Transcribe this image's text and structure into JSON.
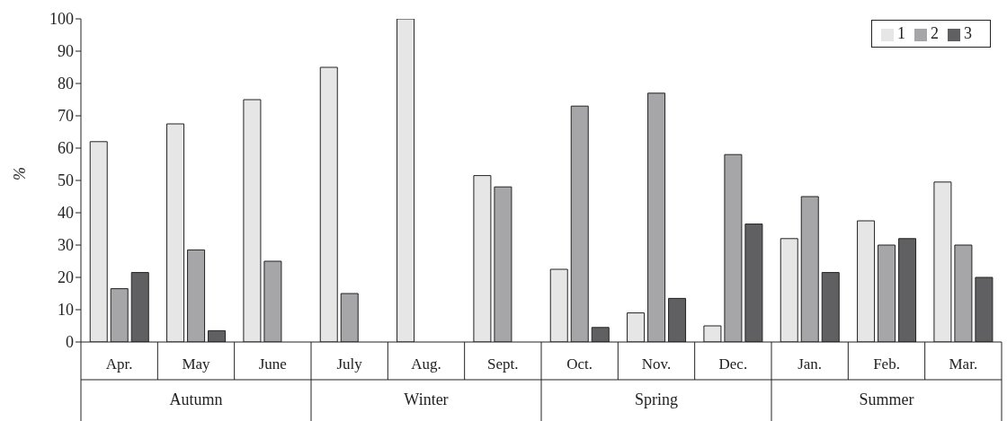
{
  "chart_data": {
    "type": "bar",
    "ylabel": "%",
    "categories": [
      "Apr.",
      "May",
      "June",
      "July",
      "Aug.",
      "Sept.",
      "Oct.",
      "Nov.",
      "Dec.",
      "Jan.",
      "Feb.",
      "Mar."
    ],
    "series": [
      {
        "name": "1",
        "color": "#e6e6e6",
        "values": [
          62,
          67.5,
          75,
          85,
          100,
          51.5,
          22.5,
          9,
          5,
          32,
          37.5,
          49.5
        ]
      },
      {
        "name": "2",
        "color": "#a6a6a8",
        "values": [
          16.5,
          28.5,
          25,
          15,
          0,
          48,
          73,
          77,
          58,
          45,
          30,
          30
        ]
      },
      {
        "name": "3",
        "color": "#606062",
        "values": [
          21.5,
          3.5,
          0,
          0,
          0,
          0,
          4.5,
          13.5,
          36.5,
          21.5,
          32,
          20
        ]
      }
    ],
    "ylim": [
      0,
      100
    ],
    "yticks": [
      0,
      10,
      20,
      30,
      40,
      50,
      60,
      70,
      80,
      90,
      100
    ],
    "grid": false,
    "legend": "top right",
    "annotations": [
      "Autumn",
      "Winter",
      "Spring",
      "Summer"
    ]
  }
}
